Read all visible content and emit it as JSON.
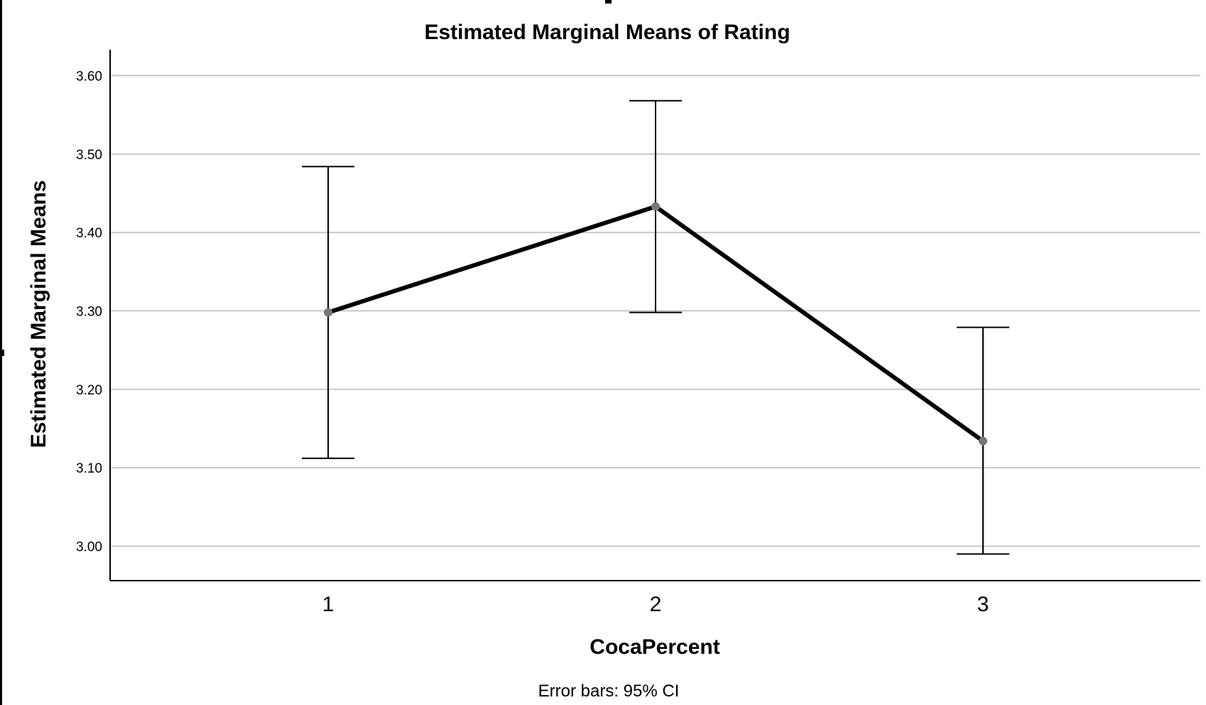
{
  "chart_data": {
    "type": "line",
    "title": "Estimated Marginal Means of Rating",
    "xlabel": "CocaPercent",
    "ylabel": "Estimated Marginal Means",
    "categories": [
      "1",
      "2",
      "3"
    ],
    "series": [
      {
        "values": [
          3.298,
          3.433,
          3.134
        ],
        "ci_lower": [
          3.112,
          3.298,
          2.99
        ],
        "ci_upper": [
          3.484,
          3.568,
          3.279
        ]
      }
    ],
    "yticks": [
      "3.00",
      "3.10",
      "3.20",
      "3.30",
      "3.40",
      "3.50",
      "3.60"
    ],
    "ylim": [
      2.956,
      3.633
    ],
    "grid": true,
    "footnote": "Error bars: 95% CI",
    "colors": {
      "line": "#000000",
      "marker": "#777777",
      "grid": "#c8c8c8",
      "axis": "#000000"
    }
  }
}
